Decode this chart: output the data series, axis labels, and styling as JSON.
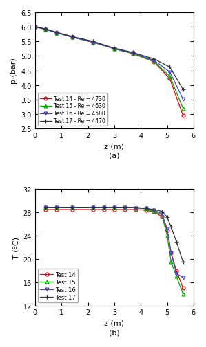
{
  "pressure": {
    "z_common": [
      0,
      0.4,
      0.8,
      1.4,
      2.2,
      3.0,
      3.7,
      4.5,
      5.1,
      5.6
    ],
    "test14": [
      6.0,
      5.92,
      5.8,
      5.65,
      5.47,
      5.25,
      5.08,
      4.8,
      4.22,
      2.95
    ],
    "test15": [
      6.0,
      5.92,
      5.8,
      5.65,
      5.47,
      5.25,
      5.08,
      4.82,
      4.3,
      3.2
    ],
    "test16": [
      6.0,
      5.91,
      5.8,
      5.65,
      5.47,
      5.25,
      5.1,
      4.85,
      4.45,
      3.52
    ],
    "test17": [
      6.0,
      5.93,
      5.82,
      5.67,
      5.5,
      5.27,
      5.12,
      4.9,
      4.62,
      3.85
    ],
    "ylim": [
      2.5,
      6.5
    ],
    "yticks": [
      2.5,
      3.0,
      3.5,
      4.0,
      4.5,
      5.0,
      5.5,
      6.0,
      6.5
    ],
    "ylabel": "p (bar)",
    "xlabel": "z (m)",
    "label_a": "(a)"
  },
  "temperature": {
    "z_common": [
      0.4,
      0.8,
      1.4,
      2.2,
      2.6,
      3.0,
      3.4,
      3.8,
      4.2,
      4.5,
      4.8,
      5.0,
      5.15,
      5.35,
      5.6
    ],
    "test14": [
      28.5,
      28.5,
      28.5,
      28.5,
      28.5,
      28.5,
      28.5,
      28.5,
      28.4,
      28.1,
      27.3,
      25.0,
      21.0,
      18.0,
      15.0
    ],
    "test15": [
      28.9,
      28.9,
      28.9,
      28.9,
      28.9,
      28.9,
      28.9,
      28.8,
      28.6,
      28.2,
      27.6,
      24.0,
      19.5,
      17.0,
      14.0
    ],
    "test16": [
      28.9,
      28.9,
      28.9,
      28.9,
      28.9,
      28.9,
      28.9,
      28.8,
      28.7,
      28.4,
      27.8,
      25.2,
      21.0,
      17.5,
      16.8
    ],
    "test17": [
      28.9,
      28.9,
      28.9,
      28.9,
      28.9,
      28.9,
      28.9,
      28.9,
      28.7,
      28.5,
      28.2,
      27.2,
      25.5,
      23.0,
      19.5
    ],
    "ylim": [
      12,
      32
    ],
    "yticks": [
      12,
      16,
      20,
      24,
      28,
      32
    ],
    "ylabel": "T (ºC)",
    "xlabel": "z (m)",
    "label_b": "(b)"
  },
  "colors": {
    "test14": "#e8000d",
    "test15": "#00aa00",
    "test16": "#4444cc",
    "test17": "#333333"
  },
  "legend_pressure": {
    "test14": "Test 14 - Re = 4730",
    "test15": "Test 15 - Re = 4630",
    "test16": "Test 16 - Re = 4580",
    "test17": "Test 17 - Re = 4470"
  },
  "legend_temperature": {
    "test14": "Test 14",
    "test15": "Test 15",
    "test16": "Test 16",
    "test17": "Test 17"
  },
  "xlim": [
    0,
    6
  ],
  "xticks": [
    0,
    1,
    2,
    3,
    4,
    5,
    6
  ]
}
